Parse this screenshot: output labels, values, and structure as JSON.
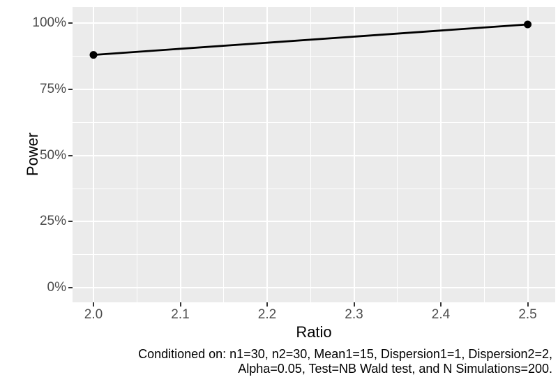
{
  "chart_data": {
    "type": "line",
    "title": "",
    "xlabel": "Ratio",
    "ylabel": "Power",
    "x_ticks": [
      2.0,
      2.1,
      2.2,
      2.3,
      2.4,
      2.5
    ],
    "x_tick_labels": [
      "2.0",
      "2.1",
      "2.2",
      "2.3",
      "2.4",
      "2.5"
    ],
    "x_minor_ticks": [
      2.05,
      2.15,
      2.25,
      2.35,
      2.45
    ],
    "y_ticks": [
      0,
      25,
      50,
      75,
      100
    ],
    "y_tick_labels": [
      "0%",
      "25%",
      "50%",
      "75%",
      "100%"
    ],
    "y_minor_ticks": [
      12.5,
      37.5,
      62.5,
      87.5
    ],
    "xlim": [
      1.9759,
      2.5317
    ],
    "ylim": [
      -5.5,
      106.1
    ],
    "grid": true,
    "legend": "none",
    "series": [
      {
        "name": "Power",
        "points": [
          {
            "x": 2.0,
            "y": 88.0
          },
          {
            "x": 2.5,
            "y": 99.5
          }
        ]
      }
    ],
    "caption": [
      "Conditioned on: n1=30, n2=30, Mean1=15, Dispersion1=1, Dispersion2=2,",
      "Alpha=0.05, Test=NB Wald test, and N Simulations=200."
    ],
    "colors": {
      "panel_background": "#EBEBEB",
      "grid_major": "#FFFFFF",
      "grid_minor": "#FFFFFF",
      "line": "#000000",
      "point": "#000000",
      "tick_mark": "#333333",
      "axis_text": "#4D4D4D",
      "axis_title": "#000000",
      "caption_text": "#000000",
      "plot_background": "#FFFFFF"
    }
  }
}
